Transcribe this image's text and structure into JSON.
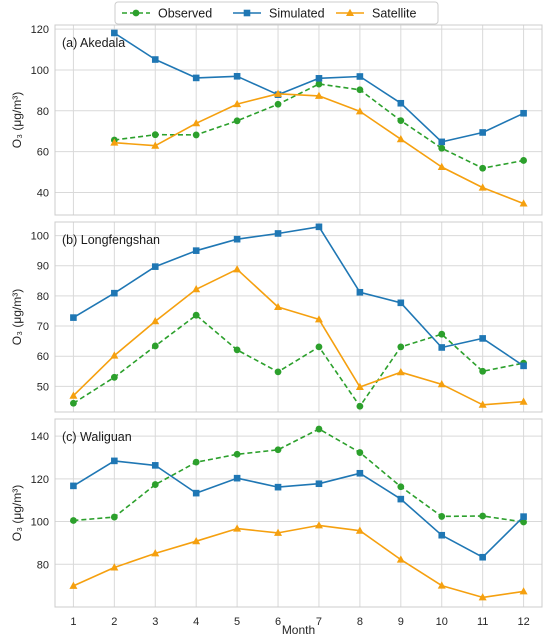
{
  "chart_data": {
    "type": "line",
    "xlabel": "Month",
    "x": [
      1,
      2,
      3,
      4,
      5,
      6,
      7,
      8,
      9,
      10,
      11,
      12
    ],
    "xticks": [
      "1",
      "2",
      "3",
      "4",
      "5",
      "6",
      "7",
      "8",
      "9",
      "10",
      "11",
      "12"
    ],
    "xlim": [
      0.55,
      12.45
    ],
    "grid": true,
    "legend": {
      "placement": "top-center",
      "entries": [
        "Observed",
        "Simulated",
        "Satellite"
      ]
    },
    "series_styles": [
      {
        "name": "Observed",
        "color": "#2ca02c",
        "marker": "circle",
        "dashed": true
      },
      {
        "name": "Simulated",
        "color": "#1f77b4",
        "marker": "square",
        "dashed": false
      },
      {
        "name": "Satellite",
        "color": "#f5a00f",
        "marker": "triangle",
        "dashed": false
      }
    ],
    "panels": [
      {
        "title": "(a) Akedala",
        "ylabel": "O₃ (μg/m³)",
        "ylim": [
          29,
          122
        ],
        "yticks": [
          40,
          60,
          80,
          100,
          120
        ],
        "series": [
          {
            "name": "Observed",
            "values": [
              null,
              65.7,
              68.3,
              68.2,
              75.1,
              83.2,
              93.1,
              90.3,
              75.2,
              61.7,
              51.9,
              55.7
            ]
          },
          {
            "name": "Simulated",
            "values": [
              null,
              118.1,
              105.1,
              96.1,
              96.9,
              87.9,
              95.9,
              96.8,
              83.7,
              64.8,
              69.4,
              78.8
            ]
          },
          {
            "name": "Satellite",
            "values": [
              null,
              64.4,
              62.9,
              73.9,
              83.3,
              88.3,
              87.3,
              79.7,
              66.1,
              52.5,
              42.4,
              34.6
            ]
          }
        ]
      },
      {
        "title": "(b) Longfengshan",
        "ylabel": "O₃ (μg/m³)",
        "ylim": [
          41.5,
          104.5
        ],
        "yticks": [
          50,
          60,
          70,
          80,
          90,
          100
        ],
        "series": [
          {
            "name": "Observed",
            "values": [
              44.4,
              53.0,
              63.4,
              73.6,
              62.1,
              54.8,
              63.1,
              43.4,
              63.1,
              67.3,
              55.0,
              57.7
            ]
          },
          {
            "name": "Simulated",
            "values": [
              72.8,
              80.9,
              89.7,
              95.0,
              98.8,
              100.7,
              102.9,
              81.2,
              77.7,
              62.9,
              65.9,
              56.8
            ]
          },
          {
            "name": "Satellite",
            "values": [
              46.9,
              60.2,
              71.6,
              82.2,
              88.8,
              76.3,
              72.2,
              49.8,
              54.7,
              50.7,
              43.9,
              44.9
            ]
          }
        ]
      },
      {
        "title": "(c) Waliguan",
        "ylabel": "O₃ (μg/m³)",
        "ylim": [
          60,
          148
        ],
        "yticks": [
          80,
          100,
          120,
          140
        ],
        "series": [
          {
            "name": "Observed",
            "values": [
              100.5,
              102.1,
              117.3,
              127.8,
              131.5,
              133.6,
              143.3,
              132.3,
              116.3,
              102.4,
              102.6,
              99.8
            ]
          },
          {
            "name": "Simulated",
            "values": [
              116.7,
              128.4,
              126.3,
              113.3,
              120.3,
              116.1,
              117.7,
              122.6,
              110.5,
              93.6,
              83.3,
              102.3
            ]
          },
          {
            "name": "Satellite",
            "values": [
              69.9,
              78.5,
              85.1,
              90.8,
              96.7,
              94.7,
              98.2,
              95.7,
              82.2,
              70.0,
              64.5,
              67.3
            ]
          }
        ]
      }
    ]
  }
}
